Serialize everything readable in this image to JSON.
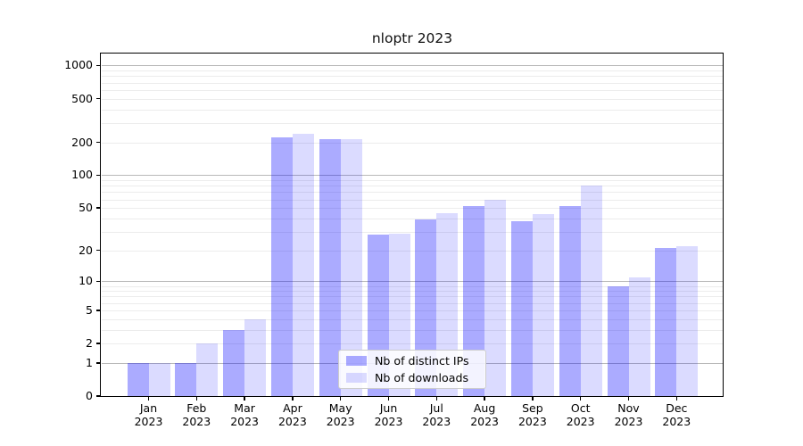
{
  "chart_data": {
    "type": "bar",
    "title": "nloptr 2023",
    "categories": [
      "Jan 2023",
      "Feb 2023",
      "Mar 2023",
      "Apr 2023",
      "May 2023",
      "Jun 2023",
      "Jul 2023",
      "Aug 2023",
      "Sep 2023",
      "Oct 2023",
      "Nov 2023",
      "Dec 2023"
    ],
    "series": [
      {
        "name": "Nb of distinct IPs",
        "color": "rgba(0,0,255,0.33)",
        "values": [
          1,
          1,
          3,
          220,
          215,
          28,
          39,
          52,
          38,
          52,
          9,
          21
        ]
      },
      {
        "name": "Nb of downloads",
        "color": "rgba(0,0,255,0.14)",
        "values": [
          1,
          2,
          4,
          237,
          212,
          29,
          45,
          60,
          44,
          80,
          11,
          22
        ]
      }
    ],
    "xlabel": "",
    "ylabel": "",
    "yscale": "log1p",
    "ylim": [
      0,
      1260
    ],
    "y_ticks": [
      0,
      1,
      2,
      5,
      10,
      20,
      50,
      100,
      200,
      500,
      1000
    ],
    "major_gridlines": [
      1,
      10,
      100,
      1000
    ],
    "minor_gridlines": [
      2,
      3,
      4,
      5,
      6,
      7,
      8,
      9,
      20,
      30,
      40,
      50,
      60,
      70,
      80,
      90,
      200,
      300,
      400,
      500,
      600,
      700,
      800,
      900
    ],
    "grid": true,
    "grid_major_color": "#b8b8b8",
    "grid_minor_color": "#ececec",
    "legend": {
      "position": "lower center"
    }
  }
}
